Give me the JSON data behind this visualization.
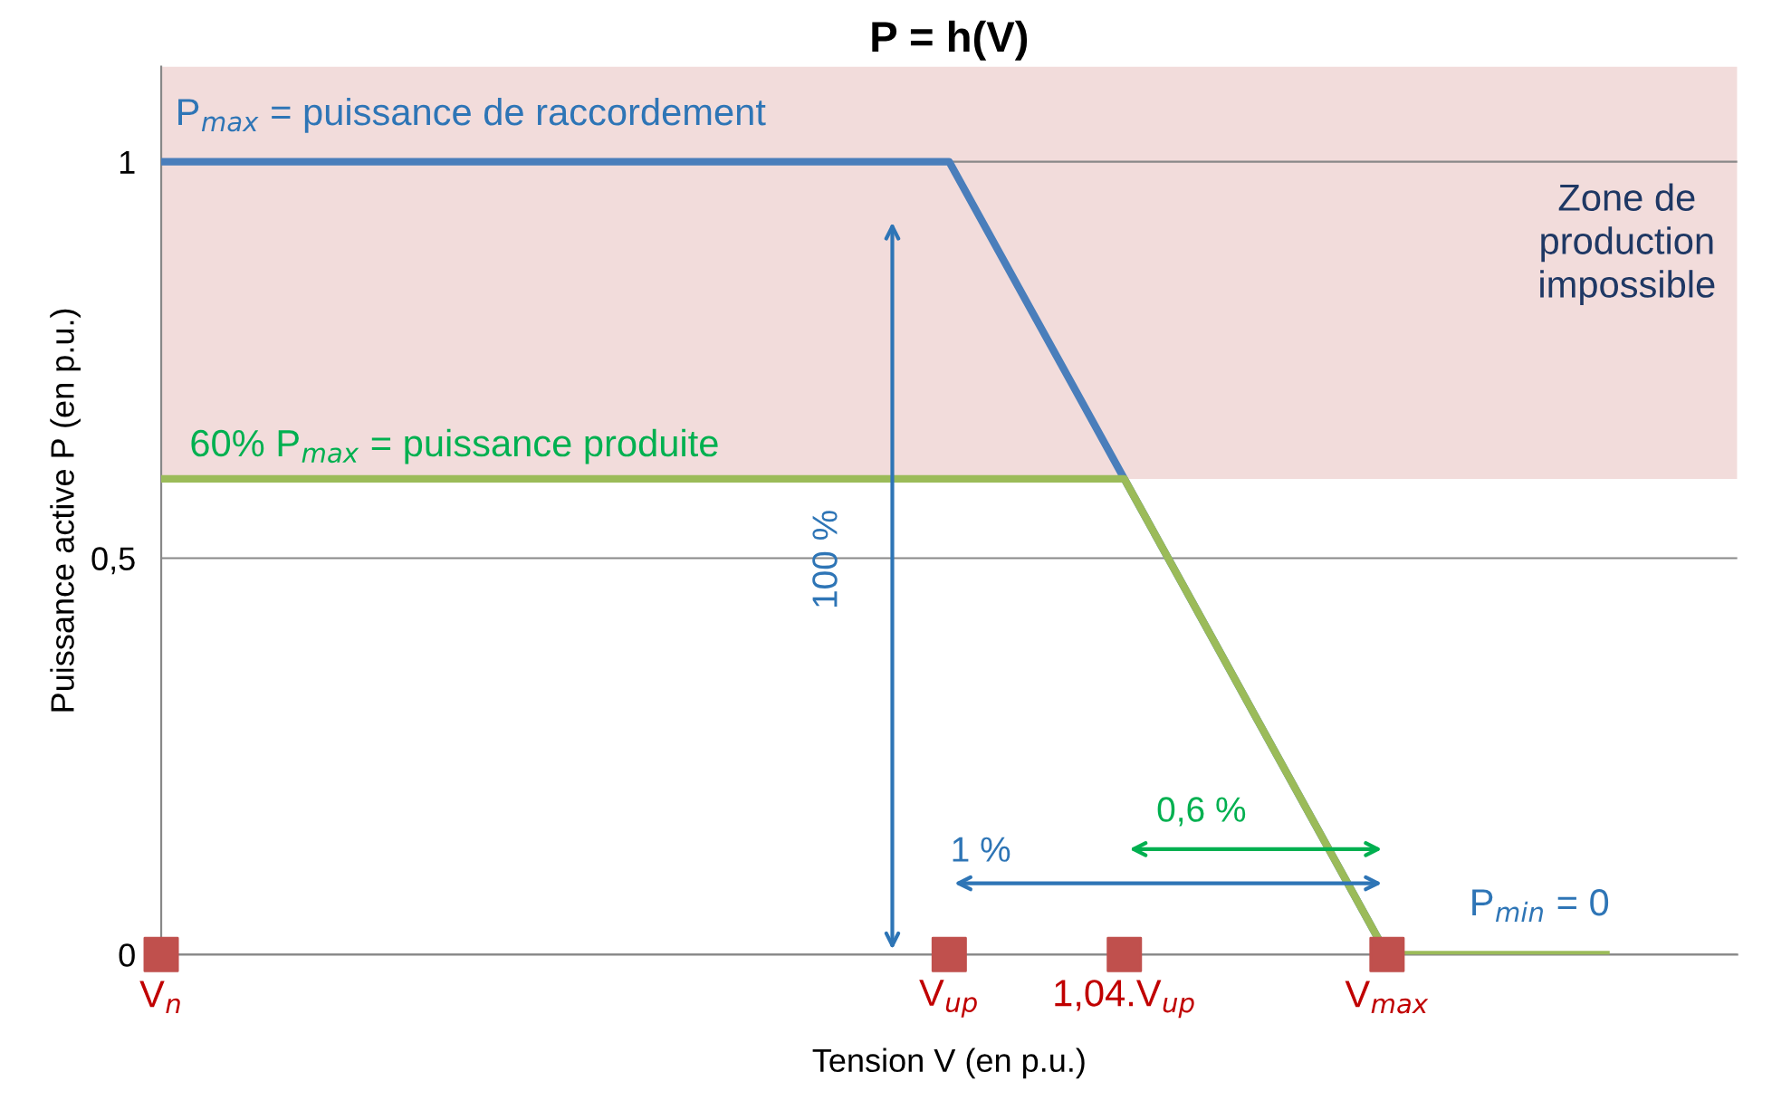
{
  "chart_data": {
    "type": "line",
    "title": "P = h(V)",
    "xlabel": "Tension V (en p.u.)",
    "ylabel": "Puissance active P (en p.u.)",
    "categories": [
      "V$_{n}$",
      null,
      null,
      null,
      null,
      null,
      null,
      null,
      null,
      null,
      null,
      null,
      null,
      null,
      null,
      null,
      null,
      null,
      "V$_{up}$",
      null,
      null,
      null,
      "1,04.V$_{up}$",
      null,
      null,
      null,
      null,
      null,
      "V$_{max}$",
      null,
      null,
      null,
      null,
      null,
      null,
      null,
      null
    ],
    "ylim": [
      0,
      1.12
    ],
    "yticks": [
      0,
      {
        "value": 0.5,
        "label": "0,5"
      },
      1
    ],
    "grid": "y",
    "line_style": "solid",
    "series": [
      {
        "color": "#4a7ebb",
        "values": [
          1,
          1,
          1,
          1,
          1,
          1,
          1,
          1,
          1,
          1,
          1,
          1,
          1,
          1,
          1,
          1,
          1,
          1,
          1,
          0.9,
          0.8,
          0.7,
          0.6,
          0.5,
          0.4,
          0.3,
          0.2,
          0.1,
          0,
          null,
          null,
          null,
          null,
          null,
          null,
          null,
          null
        ]
      },
      {
        "color": "#9bbb59",
        "values": [
          0.6,
          0.6,
          0.6,
          0.6,
          0.6,
          0.6,
          0.6,
          0.6,
          0.6,
          0.6,
          0.6,
          0.6,
          0.6,
          0.6,
          0.6,
          0.6,
          0.6,
          0.6,
          0.6,
          0.6,
          0.6,
          0.6,
          0.6,
          0.5,
          0.4,
          0.3,
          0.2,
          0.1,
          0,
          0,
          0,
          0,
          0,
          0,
          null,
          null,
          null
        ]
      },
      {
        "type": "scatter",
        "color": "#c0504d",
        "marker": "square",
        "values": [
          0,
          null,
          null,
          null,
          null,
          null,
          null,
          null,
          null,
          null,
          null,
          null,
          null,
          null,
          null,
          null,
          null,
          null,
          0,
          null,
          null,
          null,
          0,
          null,
          null,
          null,
          null,
          null,
          0,
          null,
          null,
          null,
          null,
          null,
          null,
          null,
          null
        ]
      }
    ],
    "bands": [
      {
        "axis": "y",
        "from": 0.6,
        "to": 1.12,
        "label": "Zone de\nproduction\nimpossible",
        "color": "#f2dcdb"
      }
    ],
    "annotations": [
      "P$_{max}$ = puissance de raccordement",
      "60% P$_{max}$ = puissance produite",
      "P$_{min}$ = 0",
      "100 %",
      "1 %",
      "0,6 %"
    ]
  }
}
